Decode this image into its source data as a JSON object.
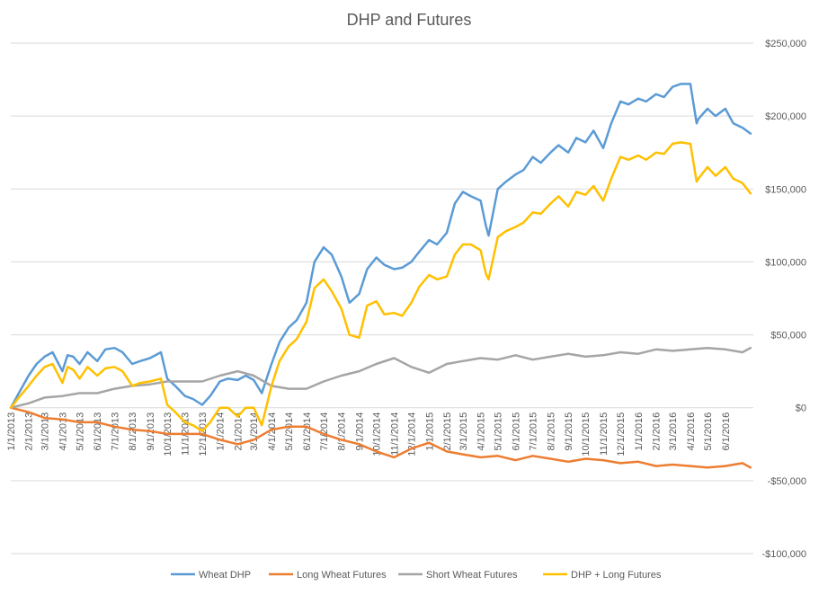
{
  "chart_data": {
    "type": "line",
    "title": "DHP and Futures",
    "xlabel": "",
    "ylabel": "",
    "y_axis_side": "right",
    "ylim": [
      -100000,
      250000
    ],
    "y_ticks": [
      {
        "value": 250000,
        "label": "$250,000"
      },
      {
        "value": 200000,
        "label": "$200,000"
      },
      {
        "value": 150000,
        "label": "$150,000"
      },
      {
        "value": 100000,
        "label": "$100,000"
      },
      {
        "value": 50000,
        "label": "$50,000"
      },
      {
        "value": 0,
        "label": "$0"
      },
      {
        "value": -50000,
        "label": "-$50,000"
      },
      {
        "value": -100000,
        "label": "-$100,000"
      }
    ],
    "gridlines": true,
    "legend_position": "bottom",
    "xlim": [
      "2013-01-01",
      "2016-07-20"
    ],
    "x_ticks": [
      "1/1/2013",
      "2/1/2013",
      "3/1/2013",
      "4/1/2013",
      "5/1/2013",
      "6/1/2013",
      "7/1/2013",
      "8/1/2013",
      "9/1/2013",
      "10/1/2013",
      "11/1/2013",
      "12/1/2013",
      "1/1/2014",
      "2/1/2014",
      "3/1/2014",
      "4/1/2014",
      "5/1/2014",
      "6/1/2014",
      "7/1/2014",
      "8/1/2014",
      "9/1/2014",
      "10/1/2014",
      "11/1/2014",
      "12/1/2014",
      "1/1/2015",
      "2/1/2015",
      "3/1/2015",
      "4/1/2015",
      "5/1/2015",
      "6/1/2015",
      "7/1/2015",
      "8/1/2015",
      "9/1/2015",
      "10/1/2015",
      "11/1/2015",
      "12/1/2015",
      "1/1/2016",
      "2/1/2016",
      "3/1/2016",
      "4/1/2016",
      "5/1/2016",
      "6/1/2016"
    ],
    "series": [
      {
        "name": "Wheat DHP",
        "color": "#5B9BD5",
        "x": [
          "2013-01-01",
          "2013-01-15",
          "2013-02-01",
          "2013-02-15",
          "2013-03-01",
          "2013-03-15",
          "2013-04-01",
          "2013-04-10",
          "2013-04-20",
          "2013-05-01",
          "2013-05-15",
          "2013-06-01",
          "2013-06-15",
          "2013-07-01",
          "2013-07-15",
          "2013-08-01",
          "2013-08-15",
          "2013-09-01",
          "2013-09-20",
          "2013-10-01",
          "2013-10-15",
          "2013-11-01",
          "2013-11-15",
          "2013-12-01",
          "2013-12-15",
          "2014-01-01",
          "2014-01-15",
          "2014-02-01",
          "2014-02-15",
          "2014-03-01",
          "2014-03-15",
          "2014-04-01",
          "2014-04-15",
          "2014-05-01",
          "2014-05-15",
          "2014-06-01",
          "2014-06-15",
          "2014-07-01",
          "2014-07-15",
          "2014-08-01",
          "2014-08-15",
          "2014-09-01",
          "2014-09-15",
          "2014-10-01",
          "2014-10-15",
          "2014-11-01",
          "2014-11-15",
          "2014-12-01",
          "2014-12-15",
          "2015-01-01",
          "2015-01-15",
          "2015-02-01",
          "2015-02-15",
          "2015-03-01",
          "2015-03-15",
          "2015-04-01",
          "2015-04-10",
          "2015-04-15",
          "2015-05-01",
          "2015-05-15",
          "2015-06-01",
          "2015-06-15",
          "2015-07-01",
          "2015-07-15",
          "2015-08-01",
          "2015-08-15",
          "2015-09-01",
          "2015-09-15",
          "2015-10-01",
          "2015-10-15",
          "2015-11-01",
          "2015-11-15",
          "2015-12-01",
          "2015-12-15",
          "2016-01-01",
          "2016-01-15",
          "2016-02-01",
          "2016-02-15",
          "2016-03-01",
          "2016-03-15",
          "2016-04-01",
          "2016-04-12",
          "2016-04-15",
          "2016-05-01",
          "2016-05-15",
          "2016-06-01",
          "2016-06-15",
          "2016-07-01",
          "2016-07-15"
        ],
        "values": [
          0,
          10000,
          22000,
          30000,
          35000,
          38000,
          25000,
          36000,
          35000,
          30000,
          38000,
          32000,
          40000,
          41000,
          38000,
          30000,
          32000,
          34000,
          38000,
          20000,
          15000,
          8000,
          6000,
          2000,
          8000,
          18000,
          20000,
          19000,
          22000,
          19000,
          10000,
          30000,
          45000,
          55000,
          60000,
          72000,
          100000,
          110000,
          105000,
          90000,
          72000,
          78000,
          95000,
          103000,
          98000,
          95000,
          96000,
          100000,
          107000,
          115000,
          112000,
          120000,
          140000,
          148000,
          145000,
          142000,
          125000,
          118000,
          150000,
          155000,
          160000,
          163000,
          172000,
          168000,
          175000,
          180000,
          175000,
          185000,
          182000,
          190000,
          178000,
          195000,
          210000,
          208000,
          212000,
          210000,
          215000,
          213000,
          220000,
          222000,
          222000,
          195000,
          198000,
          205000,
          200000,
          205000,
          195000,
          192000,
          188000
        ]
      },
      {
        "name": "Long Wheat Futures",
        "color": "#ED7D31",
        "x": [
          "2013-01-01",
          "2013-02-01",
          "2013-03-01",
          "2013-04-01",
          "2013-05-01",
          "2013-06-01",
          "2013-07-01",
          "2013-08-01",
          "2013-09-01",
          "2013-10-01",
          "2013-11-01",
          "2013-12-01",
          "2014-01-01",
          "2014-02-01",
          "2014-03-01",
          "2014-04-01",
          "2014-05-01",
          "2014-06-01",
          "2014-07-01",
          "2014-08-01",
          "2014-09-01",
          "2014-10-01",
          "2014-11-01",
          "2014-12-01",
          "2015-01-01",
          "2015-02-01",
          "2015-03-01",
          "2015-04-01",
          "2015-05-01",
          "2015-06-01",
          "2015-07-01",
          "2015-08-01",
          "2015-09-01",
          "2015-10-01",
          "2015-11-01",
          "2015-12-01",
          "2016-01-01",
          "2016-02-01",
          "2016-03-01",
          "2016-04-01",
          "2016-05-01",
          "2016-06-01",
          "2016-07-01",
          "2016-07-15"
        ],
        "values": [
          0,
          -3000,
          -7000,
          -8000,
          -10000,
          -10000,
          -13000,
          -15000,
          -16000,
          -18000,
          -18000,
          -18000,
          -22000,
          -25000,
          -22000,
          -15000,
          -13000,
          -13000,
          -18000,
          -22000,
          -25000,
          -30000,
          -34000,
          -28000,
          -24000,
          -30000,
          -32000,
          -34000,
          -33000,
          -36000,
          -33000,
          -35000,
          -37000,
          -35000,
          -36000,
          -38000,
          -37000,
          -40000,
          -39000,
          -40000,
          -41000,
          -40000,
          -38000,
          -41000
        ]
      },
      {
        "name": "Short Wheat Futures",
        "color": "#A5A5A5",
        "x": [
          "2013-01-01",
          "2013-02-01",
          "2013-03-01",
          "2013-04-01",
          "2013-05-01",
          "2013-06-01",
          "2013-07-01",
          "2013-08-01",
          "2013-09-01",
          "2013-10-01",
          "2013-11-01",
          "2013-12-01",
          "2014-01-01",
          "2014-02-01",
          "2014-03-01",
          "2014-04-01",
          "2014-05-01",
          "2014-06-01",
          "2014-07-01",
          "2014-08-01",
          "2014-09-01",
          "2014-10-01",
          "2014-11-01",
          "2014-12-01",
          "2015-01-01",
          "2015-02-01",
          "2015-03-01",
          "2015-04-01",
          "2015-05-01",
          "2015-06-01",
          "2015-07-01",
          "2015-08-01",
          "2015-09-01",
          "2015-10-01",
          "2015-11-01",
          "2015-12-01",
          "2016-01-01",
          "2016-02-01",
          "2016-03-01",
          "2016-04-01",
          "2016-05-01",
          "2016-06-01",
          "2016-07-01",
          "2016-07-15"
        ],
        "values": [
          0,
          3000,
          7000,
          8000,
          10000,
          10000,
          13000,
          15000,
          16000,
          18000,
          18000,
          18000,
          22000,
          25000,
          22000,
          15000,
          13000,
          13000,
          18000,
          22000,
          25000,
          30000,
          34000,
          28000,
          24000,
          30000,
          32000,
          34000,
          33000,
          36000,
          33000,
          35000,
          37000,
          35000,
          36000,
          38000,
          37000,
          40000,
          39000,
          40000,
          41000,
          40000,
          38000,
          41000
        ]
      },
      {
        "name": "DHP + Long Futures",
        "color": "#FFC000",
        "x": [
          "2013-01-01",
          "2013-01-15",
          "2013-02-01",
          "2013-02-15",
          "2013-03-01",
          "2013-03-15",
          "2013-04-01",
          "2013-04-10",
          "2013-04-20",
          "2013-05-01",
          "2013-05-15",
          "2013-06-01",
          "2013-06-15",
          "2013-07-01",
          "2013-07-15",
          "2013-08-01",
          "2013-08-15",
          "2013-09-01",
          "2013-09-20",
          "2013-10-01",
          "2013-10-15",
          "2013-11-01",
          "2013-11-15",
          "2013-12-01",
          "2013-12-15",
          "2014-01-01",
          "2014-01-15",
          "2014-02-01",
          "2014-02-15",
          "2014-03-01",
          "2014-03-15",
          "2014-04-01",
          "2014-04-15",
          "2014-05-01",
          "2014-05-15",
          "2014-06-01",
          "2014-06-15",
          "2014-07-01",
          "2014-07-15",
          "2014-08-01",
          "2014-08-15",
          "2014-09-01",
          "2014-09-15",
          "2014-10-01",
          "2014-10-15",
          "2014-11-01",
          "2014-11-15",
          "2014-12-01",
          "2014-12-15",
          "2015-01-01",
          "2015-01-15",
          "2015-02-01",
          "2015-02-15",
          "2015-03-01",
          "2015-03-15",
          "2015-04-01",
          "2015-04-10",
          "2015-04-15",
          "2015-05-01",
          "2015-05-15",
          "2015-06-01",
          "2015-06-15",
          "2015-07-01",
          "2015-07-15",
          "2015-08-01",
          "2015-08-15",
          "2015-09-01",
          "2015-09-15",
          "2015-10-01",
          "2015-10-15",
          "2015-11-01",
          "2015-11-15",
          "2015-12-01",
          "2015-12-15",
          "2016-01-01",
          "2016-01-15",
          "2016-02-01",
          "2016-02-15",
          "2016-03-01",
          "2016-03-15",
          "2016-04-01",
          "2016-04-12",
          "2016-04-15",
          "2016-05-01",
          "2016-05-15",
          "2016-06-01",
          "2016-06-15",
          "2016-07-01",
          "2016-07-15"
        ],
        "values": [
          0,
          7000,
          15000,
          22000,
          28000,
          30000,
          17000,
          28000,
          26000,
          20000,
          28000,
          22000,
          27000,
          28000,
          25000,
          15000,
          17000,
          18000,
          20000,
          2000,
          -3000,
          -10000,
          -12000,
          -16000,
          -10000,
          0,
          0,
          -6000,
          0,
          0,
          -12000,
          15000,
          32000,
          42000,
          47000,
          59000,
          82000,
          88000,
          80000,
          68000,
          50000,
          48000,
          70000,
          73000,
          64000,
          65000,
          63000,
          72000,
          83000,
          91000,
          88000,
          90000,
          105000,
          112000,
          112000,
          108000,
          92000,
          88000,
          117000,
          121000,
          124000,
          127000,
          134000,
          133000,
          140000,
          145000,
          138000,
          148000,
          146000,
          152000,
          142000,
          157000,
          172000,
          170000,
          173000,
          170000,
          175000,
          174000,
          181000,
          182000,
          181000,
          155000,
          157000,
          165000,
          159000,
          165000,
          157000,
          154000,
          147000
        ]
      }
    ]
  }
}
